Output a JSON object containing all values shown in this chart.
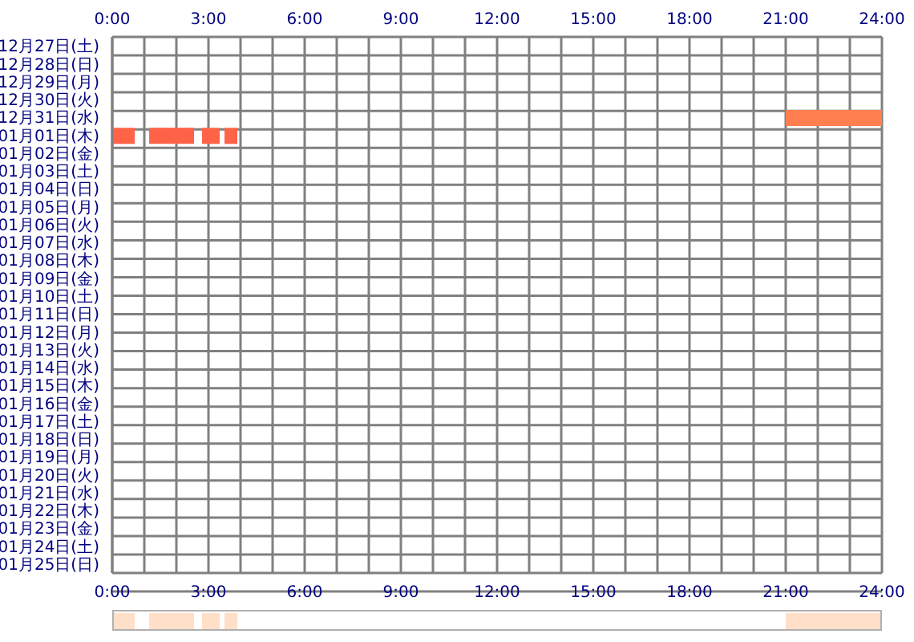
{
  "chart_data": [
    {
      "type": "bar",
      "orientation": "horizontal",
      "categories": [
        "12月27日(土)",
        "12月28日(日)",
        "12月29日(月)",
        "12月30日(火)",
        "12月31日(水)",
        "01月01日(木)",
        "01月02日(金)",
        "01月03日(土)",
        "01月04日(日)",
        "01月05日(月)",
        "01月06日(火)",
        "01月07日(水)",
        "01月08日(木)",
        "01月09日(金)",
        "01月10日(土)",
        "01月11日(日)",
        "01月12日(月)",
        "01月13日(火)",
        "01月14日(水)",
        "01月15日(木)",
        "01月16日(金)",
        "01月17日(土)",
        "01月18日(日)",
        "01月19日(月)",
        "01月20日(火)",
        "01月21日(水)",
        "01月22日(木)",
        "01月23日(金)",
        "01月24日(土)",
        "01月25日(日)"
      ],
      "series": [
        {
          "color": "#ff7f50",
          "values": [
            null,
            null,
            null,
            null,
            3,
            null,
            null,
            null,
            null,
            null,
            null,
            null,
            null,
            null,
            null,
            null,
            null,
            null,
            null,
            null,
            null,
            null,
            null,
            null,
            null,
            null,
            null,
            null,
            null,
            null
          ],
          "base": [
            null,
            null,
            null,
            null,
            21,
            null,
            null,
            null,
            null,
            null,
            null,
            null,
            null,
            null,
            null,
            null,
            null,
            null,
            null,
            null,
            null,
            null,
            null,
            null,
            null,
            null,
            null,
            null,
            null,
            null
          ]
        },
        {
          "color": "#ff6347",
          "values": [
            null,
            null,
            null,
            null,
            null,
            0.7,
            null,
            null,
            null,
            null,
            null,
            null,
            null,
            null,
            null,
            null,
            null,
            null,
            null,
            null,
            null,
            null,
            null,
            null,
            null,
            null,
            null,
            null,
            null,
            null
          ],
          "base": [
            null,
            null,
            null,
            null,
            null,
            0,
            null,
            null,
            null,
            null,
            null,
            null,
            null,
            null,
            null,
            null,
            null,
            null,
            null,
            null,
            null,
            null,
            null,
            null,
            null,
            null,
            null,
            null,
            null,
            null
          ]
        },
        {
          "color": "#ff6347",
          "values": [
            null,
            null,
            null,
            null,
            null,
            1.4,
            null,
            null,
            null,
            null,
            null,
            null,
            null,
            null,
            null,
            null,
            null,
            null,
            null,
            null,
            null,
            null,
            null,
            null,
            null,
            null,
            null,
            null,
            null,
            null
          ],
          "base": [
            null,
            null,
            null,
            null,
            null,
            1.15,
            null,
            null,
            null,
            null,
            null,
            null,
            null,
            null,
            null,
            null,
            null,
            null,
            null,
            null,
            null,
            null,
            null,
            null,
            null,
            null,
            null,
            null,
            null,
            null
          ]
        },
        {
          "color": "#ff6347",
          "values": [
            null,
            null,
            null,
            null,
            null,
            0.55,
            null,
            null,
            null,
            null,
            null,
            null,
            null,
            null,
            null,
            null,
            null,
            null,
            null,
            null,
            null,
            null,
            null,
            null,
            null,
            null,
            null,
            null,
            null,
            null
          ],
          "base": [
            null,
            null,
            null,
            null,
            null,
            2.8,
            null,
            null,
            null,
            null,
            null,
            null,
            null,
            null,
            null,
            null,
            null,
            null,
            null,
            null,
            null,
            null,
            null,
            null,
            null,
            null,
            null,
            null,
            null,
            null
          ]
        },
        {
          "color": "#ff6347",
          "values": [
            null,
            null,
            null,
            null,
            null,
            0.4,
            null,
            null,
            null,
            null,
            null,
            null,
            null,
            null,
            null,
            null,
            null,
            null,
            null,
            null,
            null,
            null,
            null,
            null,
            null,
            null,
            null,
            null,
            null,
            null
          ],
          "base": [
            null,
            null,
            null,
            null,
            null,
            3.5,
            null,
            null,
            null,
            null,
            null,
            null,
            null,
            null,
            null,
            null,
            null,
            null,
            null,
            null,
            null,
            null,
            null,
            null,
            null,
            null,
            null,
            null,
            null,
            null
          ]
        }
      ],
      "xlim": [
        0,
        24
      ],
      "xticks": [
        {
          "value": 0,
          "label": "0:00"
        },
        {
          "value": 1,
          "label": null
        },
        {
          "value": 2,
          "label": null
        },
        {
          "value": 3,
          "label": "3:00"
        },
        {
          "value": 4,
          "label": null
        },
        {
          "value": 5,
          "label": null
        },
        {
          "value": 6,
          "label": "6:00"
        },
        {
          "value": 7,
          "label": null
        },
        {
          "value": 8,
          "label": null
        },
        {
          "value": 9,
          "label": "9:00"
        },
        {
          "value": 10,
          "label": null
        },
        {
          "value": 11,
          "label": null
        },
        {
          "value": 12,
          "label": "12:00"
        },
        {
          "value": 13,
          "label": null
        },
        {
          "value": 14,
          "label": null
        },
        {
          "value": 15,
          "label": "15:00"
        },
        {
          "value": 16,
          "label": null
        },
        {
          "value": 17,
          "label": null
        },
        {
          "value": 18,
          "label": "18:00"
        },
        {
          "value": 19,
          "label": null
        },
        {
          "value": 20,
          "label": null
        },
        {
          "value": 21,
          "label": "21:00"
        },
        {
          "value": 22,
          "label": null
        },
        {
          "value": 23,
          "label": null
        },
        {
          "value": 24,
          "label": "24:00"
        }
      ],
      "x2lim": [
        0,
        24
      ],
      "x2ticks": [
        {
          "value": 0,
          "label": "0:00"
        },
        {
          "value": 1,
          "label": null
        },
        {
          "value": 2,
          "label": null
        },
        {
          "value": 3,
          "label": "3:00"
        },
        {
          "value": 4,
          "label": null
        },
        {
          "value": 5,
          "label": null
        },
        {
          "value": 6,
          "label": "6:00"
        },
        {
          "value": 7,
          "label": null
        },
        {
          "value": 8,
          "label": null
        },
        {
          "value": 9,
          "label": "9:00"
        },
        {
          "value": 10,
          "label": null
        },
        {
          "value": 11,
          "label": null
        },
        {
          "value": 12,
          "label": "12:00"
        },
        {
          "value": 13,
          "label": null
        },
        {
          "value": 14,
          "label": null
        },
        {
          "value": 15,
          "label": "15:00"
        },
        {
          "value": 16,
          "label": null
        },
        {
          "value": 17,
          "label": null
        },
        {
          "value": 18,
          "label": "18:00"
        },
        {
          "value": 19,
          "label": null
        },
        {
          "value": 20,
          "label": null
        },
        {
          "value": 21,
          "label": "21:00"
        },
        {
          "value": 22,
          "label": null
        },
        {
          "value": 23,
          "label": null
        },
        {
          "value": 24,
          "label": "24:00"
        }
      ],
      "grid": true
    },
    {
      "type": "bar",
      "orientation": "horizontal",
      "categories": [
        null
      ],
      "series": [
        {
          "color": "#ffdfc8",
          "values": [
            0.7
          ],
          "base": [
            0
          ]
        },
        {
          "color": "#ffdfc8",
          "values": [
            1.4
          ],
          "base": [
            1.15
          ]
        },
        {
          "color": "#ffdfc8",
          "values": [
            0.55
          ],
          "base": [
            2.8
          ]
        },
        {
          "color": "#ffdfc8",
          "values": [
            0.4
          ],
          "base": [
            3.5
          ]
        },
        {
          "color": "#ffdfc8",
          "values": [
            3
          ],
          "base": [
            21
          ]
        }
      ],
      "xlim": [
        0,
        24
      ],
      "tick_labels": false
    }
  ]
}
